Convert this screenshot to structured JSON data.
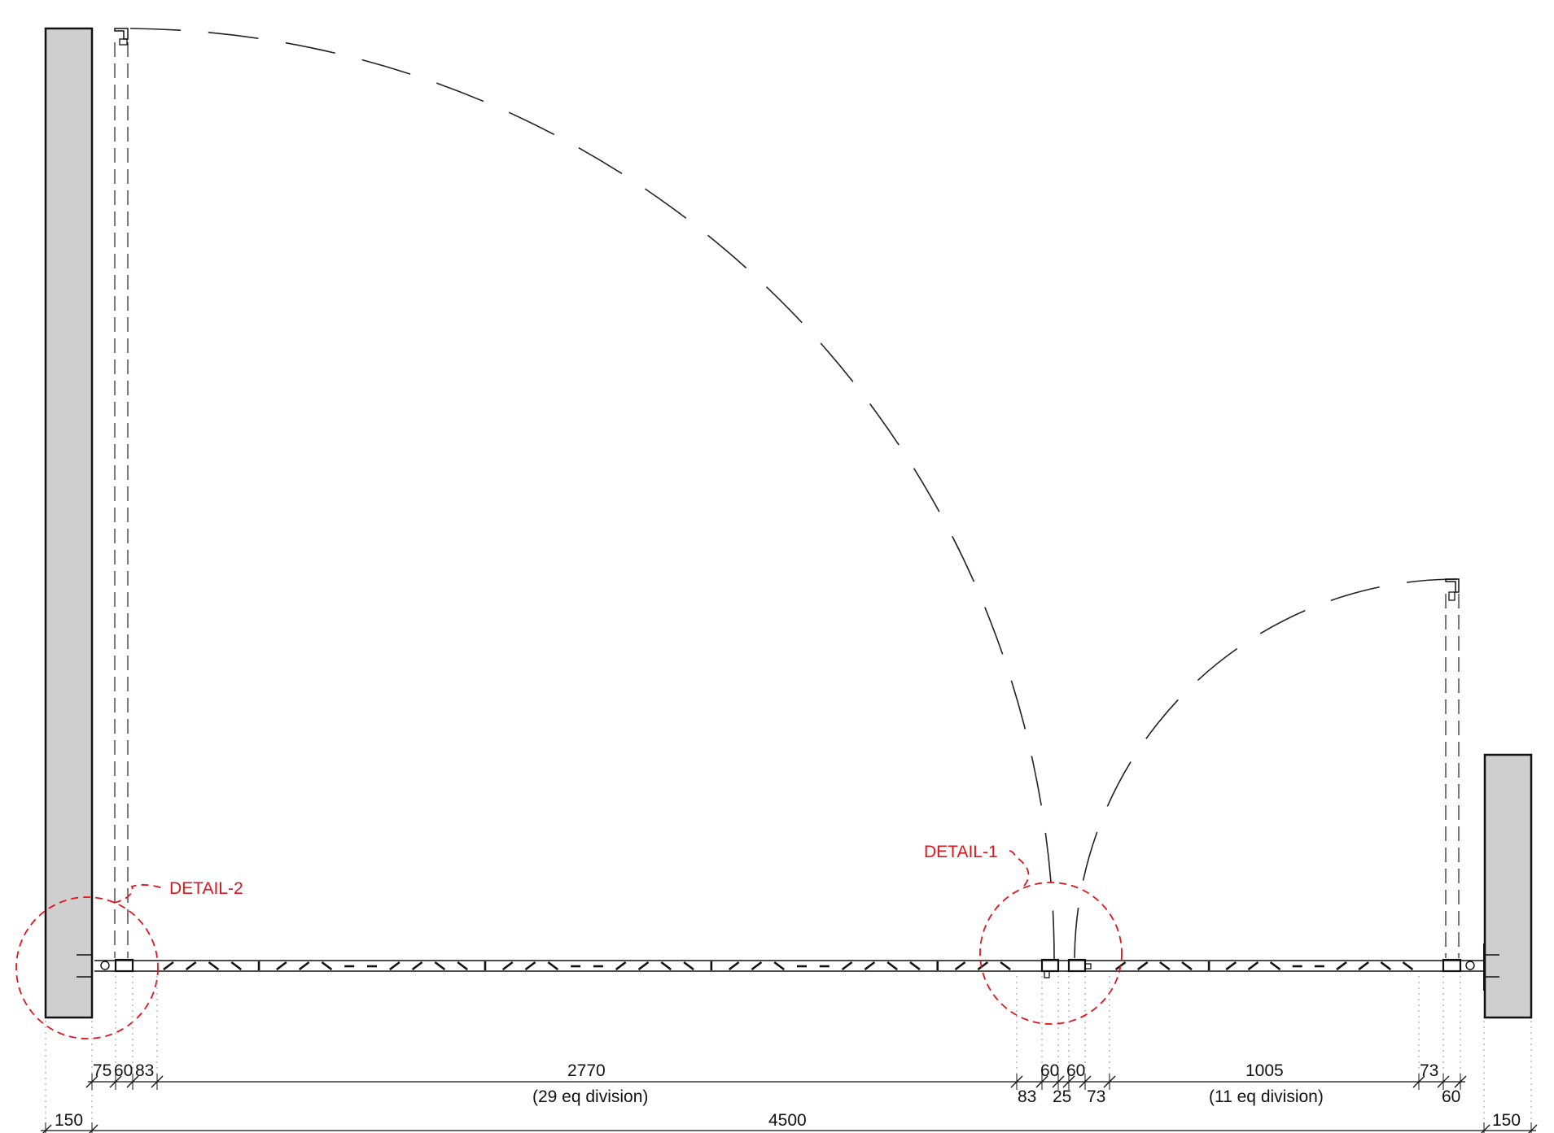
{
  "callouts": {
    "detail1": "DETAIL-1",
    "detail2": "DETAIL-2"
  },
  "dimensions": {
    "d75": "75",
    "d60a": "60",
    "d83a": "83",
    "d2770": "2770",
    "d2770_note": "(29 eq division)",
    "d60b": "60",
    "d60c": "60",
    "d83b": "83",
    "d25": "25",
    "d73a": "73",
    "d1005": "1005",
    "d1005_note": "(11 eq division)",
    "d73b": "73",
    "d60d": "60",
    "d150_left": "150",
    "d4500": "4500",
    "d150_right": "150"
  },
  "colors": {
    "wall_fill": "#cfcfcf",
    "callout_red": "#e0151b",
    "line": "#111111"
  }
}
